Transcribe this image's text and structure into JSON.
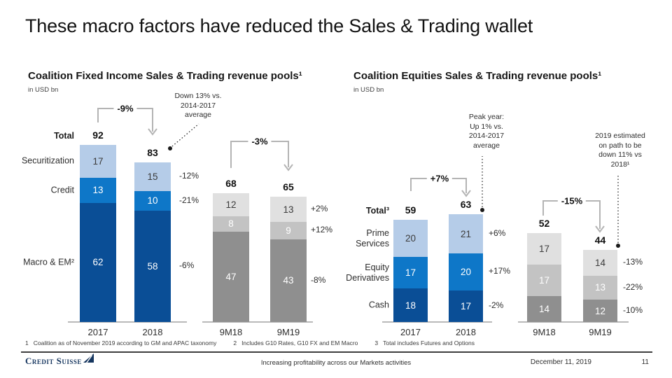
{
  "slide": {
    "title": "These macro factors have reduced the Sales & Trading wallet",
    "footnote_items": [
      {
        "num": "1",
        "text": "Coalition as of November 2019 according to GM and APAC taxonomy"
      },
      {
        "num": "2",
        "text": "Includes G10 Rates, G10 FX and EM Macro"
      },
      {
        "num": "3",
        "text": "Total includes Futures and Options"
      }
    ],
    "footer": {
      "brand": "Credit Suisse",
      "center_text": "Increasing profitability across our Markets activities",
      "date": "December 11, 2019",
      "page_number": "11"
    }
  },
  "colors": {
    "segment_blue_light": "#b5cce8",
    "segment_blue_mid": "#0e77c8",
    "segment_blue_dark": "#0a4e96",
    "segment_gray_light": "#e0e0e0",
    "segment_gray_mid": "#c3c3c3",
    "segment_gray_dark": "#8f8f8f",
    "bracket_gray": "#b4b4b4",
    "axis_gray": "#a3a3a3",
    "callout_ink": "#1a1a1a",
    "brand_navy": "#16365f"
  },
  "chart_data": [
    {
      "type": "bar",
      "stacked": true,
      "title": "Coalition Fixed Income Sales & Trading revenue pools¹",
      "unit_label": "in USD bn",
      "total_label": "Total",
      "categories": [
        "2017",
        "2018",
        "9M18",
        "9M19"
      ],
      "series": [
        {
          "name": "Securitization",
          "values": [
            17,
            15,
            12,
            13
          ]
        },
        {
          "name": "Credit",
          "values": [
            13,
            10,
            8,
            9
          ]
        },
        {
          "name": "Macro & EM²",
          "values": [
            62,
            58,
            47,
            43
          ]
        }
      ],
      "totals": [
        92,
        83,
        68,
        65
      ],
      "segment_deltas": [
        {
          "compares": "2018 vs 2017",
          "values": [
            "-12%",
            "-21%",
            "-6%"
          ]
        },
        {
          "compares": "9M19 vs 9M18",
          "values": [
            "+2%",
            "+12%",
            "-8%"
          ]
        }
      ],
      "brackets": [
        {
          "from": "2017",
          "to": "2018",
          "label": "-9%"
        },
        {
          "from": "9M18",
          "to": "9M19",
          "label": "-3%"
        }
      ],
      "callouts": [
        "Down 13% vs.\n2014-2017\naverage"
      ],
      "grid": false,
      "legend_position": "row-labels-left"
    },
    {
      "type": "bar",
      "stacked": true,
      "title": "Coalition Equities Sales & Trading revenue pools¹",
      "unit_label": "in USD bn",
      "total_label": "Total³",
      "categories": [
        "2017",
        "2018",
        "9M18",
        "9M19"
      ],
      "series": [
        {
          "name": "Prime\nServices",
          "values": [
            20,
            21,
            17,
            14
          ]
        },
        {
          "name": "Equity\nDerivatives",
          "values": [
            17,
            20,
            17,
            13
          ]
        },
        {
          "name": "Cash",
          "values": [
            18,
            17,
            14,
            12
          ]
        }
      ],
      "totals": [
        59,
        63,
        52,
        44
      ],
      "segment_deltas": [
        {
          "compares": "2018 vs 2017",
          "values": [
            "+6%",
            "+17%",
            "-2%"
          ]
        },
        {
          "compares": "9M19 vs 9M18",
          "values": [
            "-13%",
            "-22%",
            "-10%"
          ]
        }
      ],
      "brackets": [
        {
          "from": "2017",
          "to": "2018",
          "label": "+7%"
        },
        {
          "from": "9M18",
          "to": "9M19",
          "label": "-15%"
        }
      ],
      "callouts": [
        "Peak year:\nUp 1% vs.\n2014-2017\naverage",
        "2019 estimated\non path to be\ndown 11% vs\n2018¹"
      ],
      "grid": false,
      "legend_position": "row-labels-left"
    }
  ]
}
